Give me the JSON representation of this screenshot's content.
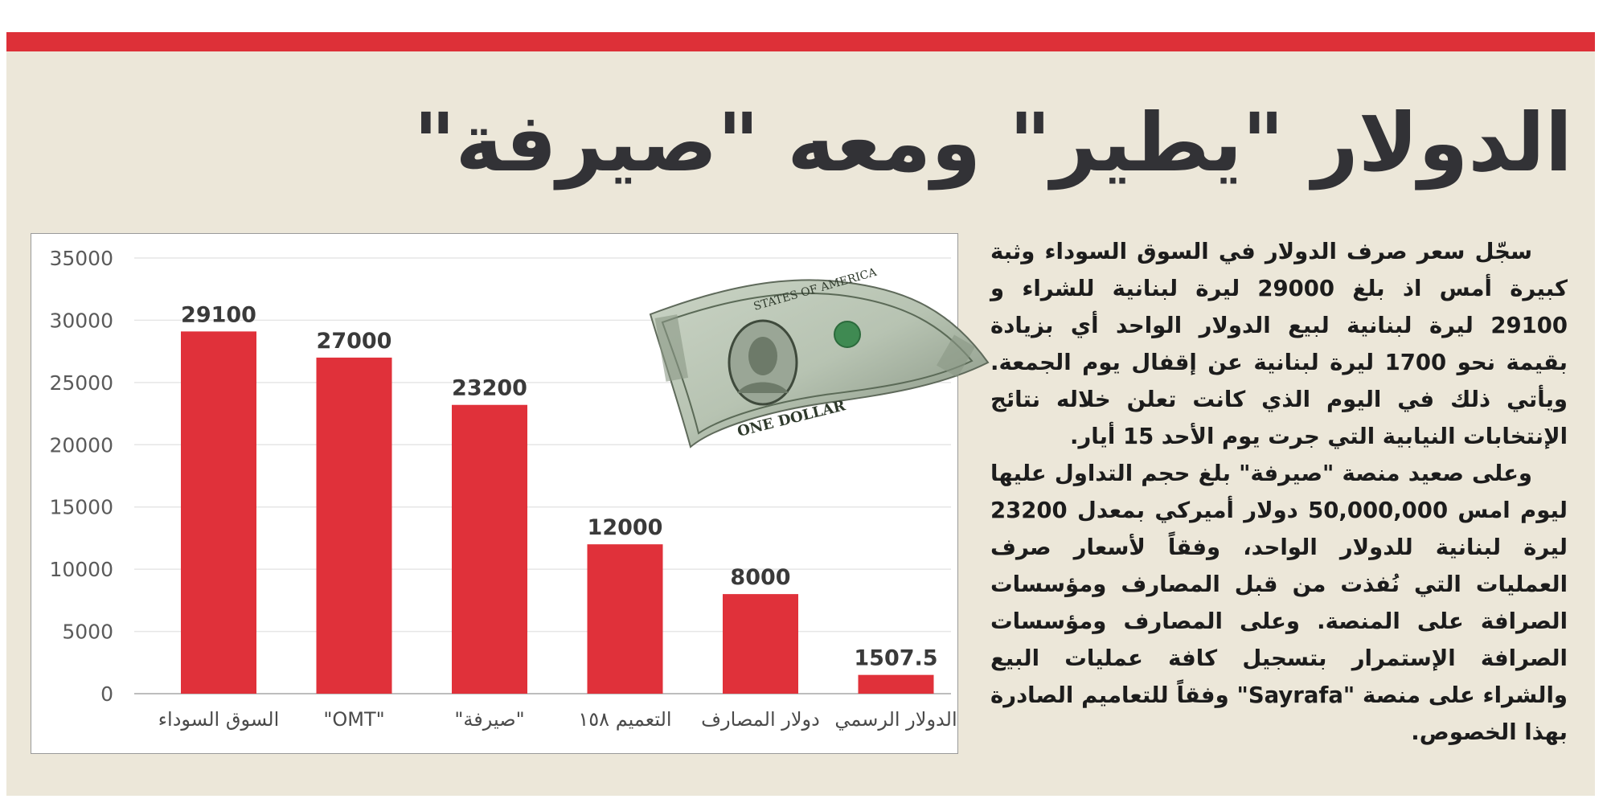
{
  "headline": "الدولار \"يطير\" ومعه \"صيرفة\"",
  "article": {
    "paragraphs": [
      "سجّل سعر صرف الدولار في السوق السوداء وثبة كبيرة أمس اذ بلغ 29000 ليرة لبنانية للشراء و 29100 ليرة لبنانية لبيع الدولار الواحد أي بزيادة بقيمة نحو 1700 ليرة لبنانية عن إقفال يوم الجمعة. ويأتي ذلك في اليوم الذي كانت تعلن خلاله نتائج الإنتخابات النيابية التي جرت يوم الأحد 15 أيار.",
      "وعلى صعيد منصة \"صيرفة\" بلغ حجم التداول عليها ليوم امس 50,000,000 دولار أميركي بمعدل 23200 ليرة لبنانية للدولار الواحد، وفقاً لأسعار صرف العمليات التي نُفذت من قبل المصارف ومؤسسات الصرافة على المنصة. وعلى المصارف ومؤسسات الصرافة الإستمرار بتسجيل كافة عمليات البيع والشراء على منصة \"Sayrafa\" وفقاً للتعاميم الصادرة بهذا الخصوص."
    ]
  },
  "illustration": {
    "bill_text_1": "STATES OF AMERICA",
    "bill_text_2": "ONE DOLLAR"
  },
  "colors": {
    "accent": "#dd3038",
    "bar": "#e0313a",
    "panel": "#ece7d9",
    "headline": "#323236"
  },
  "chart_data": {
    "type": "bar",
    "categories": [
      "السوق السوداء",
      "\"OMT\"",
      "\"صيرفة\"",
      "التعميم ١٥٨",
      "دولار المصارف",
      "الدولار الرسمي"
    ],
    "values": [
      29100,
      27000,
      23200,
      12000,
      8000,
      1507.5
    ],
    "value_labels": [
      "29100",
      "27000",
      "23200",
      "12000",
      "8000",
      "1507.5"
    ],
    "ylim": [
      0,
      35000
    ],
    "yticks": [
      "0",
      "5000",
      "10000",
      "15000",
      "20000",
      "25000",
      "30000",
      "35000"
    ],
    "grid": true,
    "legend": false
  }
}
